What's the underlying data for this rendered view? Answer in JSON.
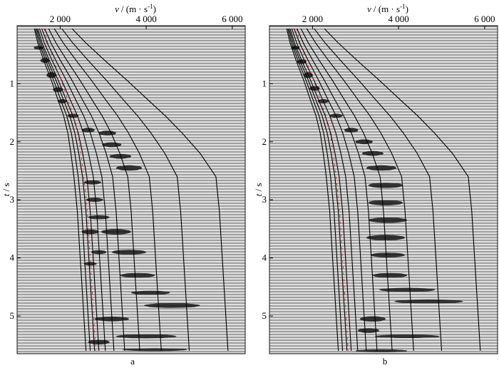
{
  "chart_data": [
    {
      "type": "line",
      "panel_label": "a",
      "xlabel": {
        "symbol": "v",
        "unit": "(m · s",
        "exp": "-1",
        "close": ")"
      },
      "ylabel": {
        "symbol": "t",
        "unit": "s"
      },
      "xlim": [
        1000,
        6300
      ],
      "ylim": [
        0,
        5.65
      ],
      "x_ticks": [
        {
          "v": 2000,
          "label": "2 000"
        },
        {
          "v": 4000,
          "label": "4 000"
        },
        {
          "v": 6000,
          "label": "6 000"
        }
      ],
      "y_ticks": [
        {
          "v": 1,
          "label": "1"
        },
        {
          "v": 2,
          "label": "2"
        },
        {
          "v": 3,
          "label": "3"
        },
        {
          "v": 4,
          "label": "4"
        },
        {
          "v": 5,
          "label": "5"
        }
      ],
      "guide_curves": {
        "base": [
          [
            1400,
            0.05
          ],
          [
            1480,
            0.3
          ],
          [
            1620,
            0.6
          ],
          [
            1800,
            0.95
          ],
          [
            1960,
            1.3
          ],
          [
            2080,
            1.55
          ],
          [
            2180,
            1.85
          ],
          [
            2250,
            2.2
          ],
          [
            2320,
            2.6
          ],
          [
            2400,
            3.2
          ],
          [
            2450,
            3.8
          ],
          [
            2500,
            4.4
          ],
          [
            2550,
            5.0
          ],
          [
            2600,
            5.6
          ]
        ],
        "offsets": [
          0,
          100,
          200,
          300,
          450,
          650,
          900,
          1250,
          1750,
          2400,
          3300
        ]
      },
      "energy_blobs": [
        {
          "v": 1500,
          "t": 0.38,
          "w": 220,
          "h": 0.07
        },
        {
          "v": 1650,
          "t": 0.6,
          "w": 220,
          "h": 0.08
        },
        {
          "v": 1800,
          "t": 0.85,
          "w": 240,
          "h": 0.09
        },
        {
          "v": 1950,
          "t": 1.1,
          "w": 240,
          "h": 0.08
        },
        {
          "v": 2050,
          "t": 1.3,
          "w": 220,
          "h": 0.07
        },
        {
          "v": 2300,
          "t": 1.55,
          "w": 260,
          "h": 0.07
        },
        {
          "v": 2650,
          "t": 1.8,
          "w": 300,
          "h": 0.08
        },
        {
          "v": 3100,
          "t": 1.85,
          "w": 400,
          "h": 0.08
        },
        {
          "v": 3200,
          "t": 2.05,
          "w": 450,
          "h": 0.08
        },
        {
          "v": 3400,
          "t": 2.25,
          "w": 500,
          "h": 0.08
        },
        {
          "v": 3600,
          "t": 2.45,
          "w": 600,
          "h": 0.09
        },
        {
          "v": 2750,
          "t": 2.7,
          "w": 400,
          "h": 0.07
        },
        {
          "v": 2800,
          "t": 3.0,
          "w": 400,
          "h": 0.07
        },
        {
          "v": 2900,
          "t": 3.3,
          "w": 500,
          "h": 0.07
        },
        {
          "v": 2700,
          "t": 3.55,
          "w": 400,
          "h": 0.08
        },
        {
          "v": 3300,
          "t": 3.55,
          "w": 700,
          "h": 0.09
        },
        {
          "v": 3600,
          "t": 3.9,
          "w": 800,
          "h": 0.08
        },
        {
          "v": 2900,
          "t": 3.9,
          "w": 350,
          "h": 0.07
        },
        {
          "v": 3800,
          "t": 4.3,
          "w": 800,
          "h": 0.08
        },
        {
          "v": 2700,
          "t": 4.1,
          "w": 300,
          "h": 0.06
        },
        {
          "v": 4100,
          "t": 4.6,
          "w": 900,
          "h": 0.07
        },
        {
          "v": 4600,
          "t": 4.82,
          "w": 1300,
          "h": 0.08
        },
        {
          "v": 3200,
          "t": 5.05,
          "w": 800,
          "h": 0.08
        },
        {
          "v": 4000,
          "t": 5.35,
          "w": 1400,
          "h": 0.07
        },
        {
          "v": 2900,
          "t": 5.45,
          "w": 500,
          "h": 0.08
        },
        {
          "v": 4200,
          "t": 5.58,
          "w": 1500,
          "h": 0.05
        }
      ]
    },
    {
      "type": "line",
      "panel_label": "b",
      "xlabel": {
        "symbol": "v",
        "unit": "(m · s",
        "exp": "-1",
        "close": ")"
      },
      "ylabel": {
        "symbol": "t",
        "unit": "s"
      },
      "xlim": [
        1000,
        6300
      ],
      "ylim": [
        0,
        5.65
      ],
      "x_ticks": [
        {
          "v": 2000,
          "label": "2 000"
        },
        {
          "v": 4000,
          "label": "4 000"
        },
        {
          "v": 6000,
          "label": "6 000"
        }
      ],
      "y_ticks": [
        {
          "v": 1,
          "label": "1"
        },
        {
          "v": 2,
          "label": "2"
        },
        {
          "v": 3,
          "label": "3"
        },
        {
          "v": 4,
          "label": "4"
        },
        {
          "v": 5,
          "label": "5"
        }
      ],
      "guide_curves": {
        "base": [
          [
            1400,
            0.05
          ],
          [
            1480,
            0.3
          ],
          [
            1620,
            0.6
          ],
          [
            1800,
            0.95
          ],
          [
            1960,
            1.3
          ],
          [
            2080,
            1.55
          ],
          [
            2180,
            1.85
          ],
          [
            2250,
            2.2
          ],
          [
            2320,
            2.6
          ],
          [
            2400,
            3.2
          ],
          [
            2450,
            3.8
          ],
          [
            2500,
            4.4
          ],
          [
            2550,
            5.0
          ],
          [
            2600,
            5.6
          ]
        ],
        "offsets": [
          0,
          100,
          200,
          300,
          450,
          650,
          900,
          1250,
          1750,
          2400,
          3300
        ]
      },
      "energy_blobs": [
        {
          "v": 1600,
          "t": 0.38,
          "w": 200,
          "h": 0.07
        },
        {
          "v": 1750,
          "t": 0.62,
          "w": 220,
          "h": 0.08
        },
        {
          "v": 1900,
          "t": 0.85,
          "w": 220,
          "h": 0.09
        },
        {
          "v": 2050,
          "t": 1.08,
          "w": 240,
          "h": 0.08
        },
        {
          "v": 2250,
          "t": 1.3,
          "w": 260,
          "h": 0.07
        },
        {
          "v": 2550,
          "t": 1.55,
          "w": 300,
          "h": 0.07
        },
        {
          "v": 2900,
          "t": 1.8,
          "w": 320,
          "h": 0.08
        },
        {
          "v": 3200,
          "t": 2.0,
          "w": 400,
          "h": 0.08
        },
        {
          "v": 3400,
          "t": 2.2,
          "w": 500,
          "h": 0.08
        },
        {
          "v": 3600,
          "t": 2.45,
          "w": 700,
          "h": 0.09
        },
        {
          "v": 3700,
          "t": 2.75,
          "w": 800,
          "h": 0.09
        },
        {
          "v": 3700,
          "t": 3.05,
          "w": 800,
          "h": 0.09
        },
        {
          "v": 3750,
          "t": 3.35,
          "w": 900,
          "h": 0.09
        },
        {
          "v": 3700,
          "t": 3.65,
          "w": 900,
          "h": 0.09
        },
        {
          "v": 3750,
          "t": 3.95,
          "w": 800,
          "h": 0.08
        },
        {
          "v": 3800,
          "t": 4.3,
          "w": 800,
          "h": 0.08
        },
        {
          "v": 4200,
          "t": 4.55,
          "w": 1300,
          "h": 0.07
        },
        {
          "v": 4700,
          "t": 4.75,
          "w": 1600,
          "h": 0.07
        },
        {
          "v": 3400,
          "t": 5.05,
          "w": 600,
          "h": 0.09
        },
        {
          "v": 3300,
          "t": 5.25,
          "w": 500,
          "h": 0.08
        },
        {
          "v": 4200,
          "t": 5.35,
          "w": 1500,
          "h": 0.06
        },
        {
          "v": 3600,
          "t": 5.6,
          "w": 1200,
          "h": 0.05
        }
      ]
    }
  ]
}
